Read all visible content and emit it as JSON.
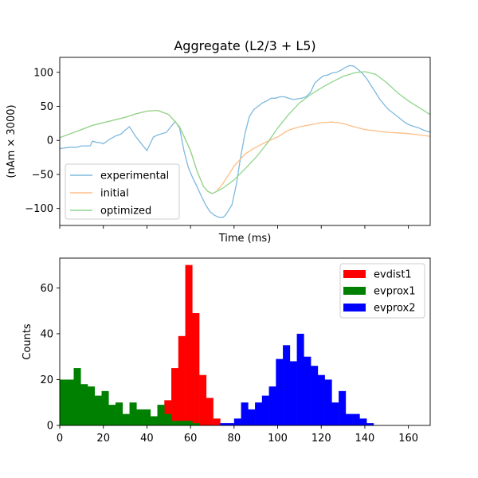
{
  "chart_data": [
    {
      "type": "line",
      "title": "Aggregate (L2/3 + L5)",
      "xlabel": "Time (ms)",
      "ylabel": "(nAm × 3000)",
      "xlim": [
        0,
        170
      ],
      "ylim": [
        -125,
        122
      ],
      "x_tick_labels_visible": false,
      "yticks": [
        100,
        50,
        0,
        -50,
        -100
      ],
      "ytick_labels": [
        "100",
        "50",
        "0",
        "−50",
        "−100"
      ],
      "legend": {
        "placement": "lower-left",
        "entries": [
          "experimental",
          "initial",
          "optimized"
        ]
      },
      "series": [
        {
          "name": "experimental",
          "color": "#7fb9de",
          "x": [
            0,
            5,
            8,
            10,
            12,
            14,
            15,
            17,
            18,
            20,
            23,
            26,
            28,
            30,
            32,
            34,
            35,
            37,
            40,
            43,
            45,
            47,
            49,
            51,
            53,
            55,
            57,
            59,
            61,
            63,
            65,
            67,
            69,
            71,
            73,
            75,
            76,
            79,
            81,
            83,
            85,
            87,
            89,
            91,
            93,
            95,
            97,
            99,
            101,
            103,
            105,
            107,
            109,
            111,
            113,
            115,
            117,
            119,
            121,
            123,
            125,
            127,
            129,
            131,
            133,
            135,
            137,
            139,
            141,
            143,
            145,
            147,
            149,
            151,
            153,
            155,
            157,
            159,
            161,
            163,
            165,
            167,
            169,
            170
          ],
          "y": [
            -12,
            -10,
            -10,
            -8,
            -8,
            -8,
            -1,
            -3,
            -3,
            -5,
            2,
            7,
            9,
            15,
            20,
            10,
            5,
            -3,
            -15,
            5,
            8,
            10,
            12,
            20,
            28,
            18,
            -15,
            -40,
            -55,
            -68,
            -82,
            -95,
            -105,
            -110,
            -113,
            -113,
            -110,
            -95,
            -65,
            -25,
            10,
            35,
            45,
            50,
            55,
            58,
            62,
            62,
            64,
            64,
            62,
            60,
            61,
            62,
            64,
            70,
            84,
            90,
            95,
            96,
            99,
            100,
            103,
            107,
            110,
            109,
            104,
            98,
            90,
            80,
            70,
            60,
            52,
            45,
            40,
            35,
            30,
            25,
            22,
            20,
            18,
            15,
            13,
            12
          ]
        },
        {
          "name": "initial",
          "color": "#ffbe86",
          "x": [
            0,
            5,
            10,
            15,
            20,
            25,
            30,
            35,
            40,
            45,
            50,
            55,
            60,
            63,
            66,
            68,
            70,
            72,
            75,
            80,
            85,
            90,
            95,
            100,
            105,
            110,
            115,
            120,
            125,
            130,
            135,
            140,
            145,
            150,
            155,
            160,
            165,
            170
          ],
          "y": [
            4,
            10,
            16,
            22,
            26,
            30,
            34,
            39,
            43,
            44,
            38,
            20,
            -15,
            -45,
            -68,
            -75,
            -78,
            -75,
            -63,
            -38,
            -20,
            -10,
            -2,
            5,
            15,
            20,
            23,
            26,
            27,
            25,
            20,
            16,
            14,
            12,
            11,
            10,
            8,
            6
          ]
        },
        {
          "name": "optimized",
          "color": "#8dd68d",
          "x": [
            0,
            5,
            10,
            15,
            20,
            25,
            30,
            35,
            40,
            45,
            50,
            55,
            60,
            63,
            66,
            68,
            70,
            72,
            75,
            80,
            85,
            90,
            95,
            100,
            105,
            110,
            115,
            120,
            125,
            130,
            135,
            140,
            145,
            150,
            155,
            160,
            165,
            170
          ],
          "y": [
            4,
            10,
            16,
            22,
            26,
            30,
            34,
            39,
            43,
            44,
            38,
            20,
            -15,
            -45,
            -68,
            -75,
            -78,
            -75,
            -70,
            -58,
            -42,
            -25,
            -5,
            18,
            38,
            55,
            67,
            77,
            86,
            94,
            99,
            101,
            97,
            85,
            70,
            58,
            48,
            38
          ]
        }
      ]
    },
    {
      "type": "bar",
      "subtype": "histogram",
      "xlabel": "",
      "ylabel": "Counts",
      "xlim": [
        0,
        170
      ],
      "ylim": [
        0,
        73
      ],
      "xticks": [
        0,
        20,
        40,
        60,
        80,
        100,
        120,
        140,
        160
      ],
      "xtick_labels": [
        "0",
        "20",
        "40",
        "60",
        "80",
        "100",
        "120",
        "140",
        "160"
      ],
      "yticks": [
        0,
        20,
        40,
        60
      ],
      "ytick_labels": [
        "0",
        "20",
        "40",
        "60"
      ],
      "legend": {
        "placement": "upper-right",
        "entries": [
          "evdist1",
          "evprox1",
          "evprox2"
        ]
      },
      "bin_width": 3.2,
      "series": [
        {
          "name": "evdist1",
          "color": "#ff0000",
          "bin_starts": [
            44.8,
            48.0,
            51.2,
            54.4,
            57.6,
            60.8,
            64.0,
            67.2,
            70.4
          ],
          "counts": [
            5,
            11,
            25,
            39,
            70,
            49,
            22,
            12,
            3
          ]
        },
        {
          "name": "evprox1",
          "color": "#008000",
          "bin_starts": [
            0,
            3.2,
            6.4,
            9.6,
            12.8,
            16.0,
            19.2,
            22.4,
            25.6,
            28.8,
            32.0,
            35.2,
            38.4,
            41.6,
            44.8,
            48.0,
            51.2,
            54.4,
            57.6,
            60.8
          ],
          "counts": [
            20,
            20,
            25,
            18,
            17,
            13,
            15,
            9,
            10,
            5,
            10,
            7,
            7,
            4,
            9,
            5,
            2,
            2,
            2,
            1
          ]
        },
        {
          "name": "evprox2",
          "color": "#0000ff",
          "bin_starts": [
            73.6,
            76.8,
            80.0,
            83.2,
            86.4,
            89.6,
            92.8,
            96.0,
            99.2,
            102.4,
            105.6,
            108.8,
            112.0,
            115.2,
            118.4,
            121.6,
            124.8,
            128.0,
            131.2,
            134.4,
            137.6,
            140.8
          ],
          "counts": [
            1,
            1,
            3,
            10,
            7,
            10,
            13,
            17,
            29,
            35,
            28,
            40,
            30,
            26,
            22,
            20,
            10,
            15,
            5,
            5,
            3,
            1
          ]
        }
      ]
    }
  ]
}
